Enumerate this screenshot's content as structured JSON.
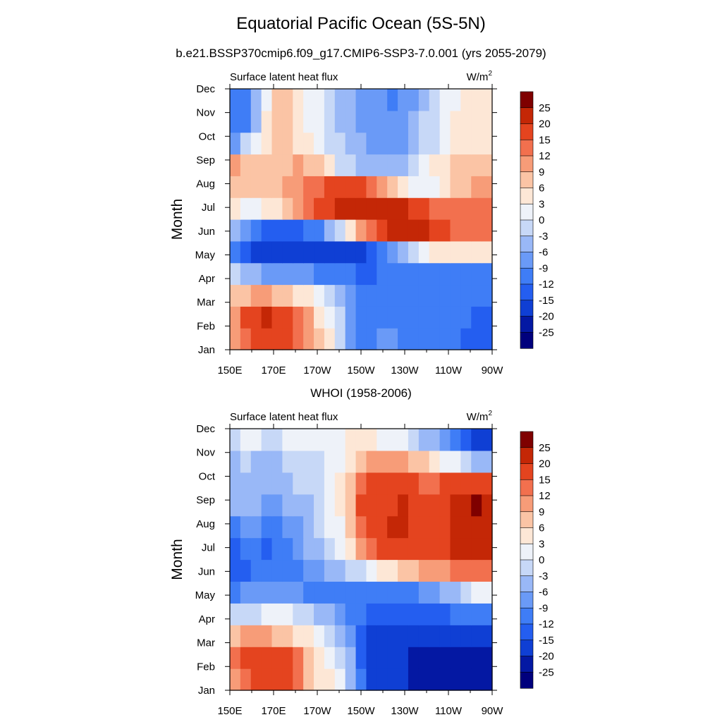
{
  "figure": {
    "title": "Equatorial Pacific Ocean (5S-5N)",
    "subtitle": "b.e21.BSSP370cmip6.f09_g17.CMIP6-SSP3-7.0.001 (yrs 2055-2079)",
    "panel2_title": "WHOI (1958-2006)"
  },
  "chart_data": [
    {
      "type": "heatmap",
      "title": "b.e21.BSSP370cmip6.f09_g17.CMIP6-SSP3-7.0.001 (yrs 2055-2079)",
      "left_label": "Surface latent heat flux",
      "units_base": "W/m",
      "units_exp": "2",
      "ylabel": "Month",
      "xlabel": "",
      "x_ticks": [
        "150E",
        "170E",
        "170W",
        "150W",
        "130W",
        "110W",
        "90W"
      ],
      "y_ticks": [
        "Jan",
        "Feb",
        "Mar",
        "Apr",
        "May",
        "Jun",
        "Jul",
        "Aug",
        "Sep",
        "Oct",
        "Nov",
        "Dec"
      ],
      "x": [
        "150E",
        "155E",
        "160E",
        "165E",
        "170E",
        "175E",
        "180",
        "175W",
        "170W",
        "165W",
        "160W",
        "155W",
        "150W",
        "145W",
        "140W",
        "135W",
        "130W",
        "125W",
        "120W",
        "115W",
        "110W",
        "105W",
        "100W",
        "95W",
        "90W"
      ],
      "values": [
        [
          10,
          14,
          17,
          19,
          18,
          17,
          14,
          10,
          6,
          3,
          -2,
          -8,
          -10,
          -10,
          -9,
          -9,
          -10,
          -11,
          -11,
          -11,
          -11,
          -12,
          -13,
          -14,
          -15
        ],
        [
          11,
          15,
          18,
          20,
          18,
          16,
          13,
          9,
          5,
          2,
          -3,
          -8,
          -10,
          -11,
          -10,
          -10,
          -10,
          -11,
          -11,
          -11,
          -11,
          -12,
          -12,
          -13,
          -14
        ],
        [
          6,
          8,
          9,
          9,
          8,
          7,
          5,
          3,
          1,
          -1,
          -4,
          -8,
          -10,
          -10,
          -10,
          -10,
          -11,
          -11,
          -12,
          -12,
          -12,
          -11,
          -11,
          -11,
          -12
        ],
        [
          -2,
          -4,
          -6,
          -7,
          -8,
          -8,
          -9,
          -9,
          -10,
          -11,
          -11,
          -12,
          -13,
          -13,
          -12,
          -12,
          -11,
          -11,
          -11,
          -10,
          -10,
          -10,
          -10,
          -10,
          -10
        ],
        [
          -12,
          -14,
          -16,
          -17,
          -17,
          -17,
          -18,
          -18,
          -18,
          -18,
          -18,
          -17,
          -16,
          -14,
          -12,
          -9,
          -5,
          -2,
          1,
          3,
          4,
          5,
          5,
          5,
          5
        ],
        [
          -6,
          -9,
          -12,
          -13,
          -13,
          -13,
          -13,
          -12,
          -10,
          -6,
          -1,
          4,
          9,
          14,
          19,
          22,
          24,
          24,
          21,
          18,
          15,
          13,
          12,
          13,
          14
        ],
        [
          3,
          2,
          2,
          3,
          4,
          6,
          9,
          13,
          16,
          19,
          21,
          22,
          23,
          24,
          24,
          23,
          21,
          18,
          15,
          13,
          12,
          12,
          12,
          12,
          12
        ],
        [
          8,
          7,
          6,
          7,
          8,
          9,
          11,
          13,
          14,
          15,
          16,
          16,
          15,
          12,
          9,
          6,
          3,
          1,
          1,
          2,
          4,
          6,
          8,
          9,
          10
        ],
        [
          9,
          8,
          7,
          6,
          7,
          8,
          9,
          8,
          6,
          3,
          -1,
          -3,
          -4,
          -5,
          -5,
          -5,
          -4,
          -2,
          1,
          3,
          5,
          6,
          7,
          8,
          8
        ],
        [
          -7,
          -3,
          1,
          4,
          6,
          6,
          5,
          3,
          1,
          -1,
          -3,
          -5,
          -6,
          -8,
          -9,
          -9,
          -8,
          -6,
          -3,
          -1,
          1,
          3,
          4,
          5,
          5
        ],
        [
          -12,
          -10,
          -4,
          3,
          6,
          6,
          4,
          2,
          0,
          -2,
          -4,
          -6,
          -7,
          -8,
          -9,
          -9,
          -8,
          -6,
          -3,
          -1,
          1,
          3,
          3,
          4,
          5
        ],
        [
          -11,
          -10,
          -5,
          2,
          6,
          6,
          4,
          2,
          0,
          -2,
          -4,
          -6,
          -8,
          -9,
          -9,
          -10,
          -9,
          -7,
          -4,
          -2,
          0,
          2,
          3,
          4,
          5
        ]
      ],
      "colorbar": {
        "labels": [
          "25",
          "20",
          "15",
          "12",
          "9",
          "6",
          "3",
          "0",
          "-3",
          "-6",
          "-9",
          "-12",
          "-15",
          "-20",
          "-25"
        ],
        "levels": [
          -25,
          -20,
          -15,
          -12,
          -9,
          -6,
          -3,
          0,
          3,
          6,
          9,
          12,
          15,
          20,
          25
        ],
        "colors": [
          "#00007d",
          "#0418a3",
          "#0f3fd4",
          "#245ef0",
          "#3f7df6",
          "#6a9af7",
          "#99b8f7",
          "#c7d8f7",
          "#eef2f9",
          "#fde7d6",
          "#fbc4a5",
          "#f79c78",
          "#f2704e",
          "#e4441f",
          "#c42706",
          "#7f0000"
        ]
      }
    },
    {
      "type": "heatmap",
      "title": "WHOI (1958-2006)",
      "left_label": "Surface latent heat flux",
      "units_base": "W/m",
      "units_exp": "2",
      "ylabel": "Month",
      "xlabel": "",
      "x_ticks": [
        "150E",
        "170E",
        "170W",
        "150W",
        "130W",
        "110W",
        "90W"
      ],
      "y_ticks": [
        "Jan",
        "Feb",
        "Mar",
        "Apr",
        "May",
        "Jun",
        "Jul",
        "Aug",
        "Sep",
        "Oct",
        "Nov",
        "Dec"
      ],
      "x": [
        "150E",
        "155E",
        "160E",
        "165E",
        "170E",
        "175E",
        "180",
        "175W",
        "170W",
        "165W",
        "160W",
        "155W",
        "150W",
        "145W",
        "140W",
        "135W",
        "130W",
        "125W",
        "120W",
        "115W",
        "110W",
        "105W",
        "100W",
        "95W",
        "90W"
      ],
      "values": [
        [
          11,
          14,
          16,
          16,
          15,
          15,
          12,
          8,
          5,
          3,
          0,
          -6,
          -12,
          -16,
          -18,
          -19,
          -20,
          -21,
          -21,
          -22,
          -22,
          -23,
          -24,
          -24,
          -24
        ],
        [
          13,
          16,
          17,
          17,
          16,
          15,
          12,
          8,
          5,
          2,
          -1,
          -6,
          -13,
          -17,
          -18,
          -19,
          -20,
          -21,
          -22,
          -22,
          -22,
          -22,
          -23,
          -23,
          -23
        ],
        [
          7,
          9,
          10,
          9,
          8,
          7,
          5,
          3,
          1,
          -1,
          -4,
          -8,
          -14,
          -16,
          -16,
          -16,
          -17,
          -17,
          -17,
          -17,
          -17,
          -16,
          -16,
          -16,
          -16
        ],
        [
          -3,
          -2,
          -1,
          0,
          1,
          0,
          -1,
          -2,
          -4,
          -6,
          -8,
          -10,
          -12,
          -14,
          -15,
          -15,
          -15,
          -15,
          -15,
          -14,
          -13,
          -12,
          -11,
          -10,
          -10
        ],
        [
          -10,
          -9,
          -8,
          -8,
          -8,
          -8,
          -9,
          -10,
          -10,
          -11,
          -11,
          -11,
          -11,
          -11,
          -11,
          -11,
          -11,
          -10,
          -9,
          -8,
          -6,
          -4,
          -2,
          0,
          2
        ],
        [
          -14,
          -13,
          -12,
          -12,
          -11,
          -11,
          -11,
          -9,
          -7,
          -6,
          -5,
          -3,
          -1,
          1,
          3,
          5,
          7,
          8,
          9,
          10,
          11,
          12,
          12,
          12,
          12
        ],
        [
          -13,
          -12,
          -12,
          -13,
          -12,
          -10,
          -8,
          -6,
          -4,
          -2,
          0,
          3,
          9,
          13,
          15,
          16,
          17,
          17,
          17,
          18,
          19,
          20,
          20,
          20,
          20
        ],
        [
          -10,
          -9,
          -9,
          -10,
          -10,
          -9,
          -7,
          -5,
          -3,
          0,
          2,
          6,
          13,
          16,
          18,
          20,
          20,
          19,
          18,
          18,
          19,
          20,
          21,
          21,
          21
        ],
        [
          -6,
          -5,
          -6,
          -7,
          -7,
          -6,
          -5,
          -4,
          -3,
          0,
          3,
          8,
          15,
          17,
          18,
          19,
          20,
          18,
          16,
          17,
          19,
          21,
          23,
          26,
          24
        ],
        [
          -4,
          -4,
          -6,
          -6,
          -5,
          -4,
          -3,
          -2,
          -2,
          0,
          3,
          8,
          14,
          16,
          16,
          17,
          18,
          16,
          14,
          14,
          15,
          16,
          17,
          18,
          17
        ],
        [
          -4,
          -3,
          -4,
          -5,
          -4,
          -3,
          -2,
          -2,
          -1,
          0,
          2,
          5,
          8,
          10,
          10,
          10,
          10,
          8,
          6,
          4,
          2,
          0,
          -2,
          -4,
          -6
        ],
        [
          -1,
          0,
          0,
          -1,
          -1,
          0,
          0,
          1,
          1,
          2,
          2,
          3,
          3,
          3,
          2,
          1,
          0,
          -2,
          -4,
          -6,
          -8,
          -10,
          -13,
          -16,
          -18
        ]
      ],
      "colorbar": {
        "labels": [
          "25",
          "20",
          "15",
          "12",
          "9",
          "6",
          "3",
          "0",
          "-3",
          "-6",
          "-9",
          "-12",
          "-15",
          "-20",
          "-25"
        ],
        "levels": [
          -25,
          -20,
          -15,
          -12,
          -9,
          -6,
          -3,
          0,
          3,
          6,
          9,
          12,
          15,
          20,
          25
        ],
        "colors": [
          "#00007d",
          "#0418a3",
          "#0f3fd4",
          "#245ef0",
          "#3f7df6",
          "#6a9af7",
          "#99b8f7",
          "#c7d8f7",
          "#eef2f9",
          "#fde7d6",
          "#fbc4a5",
          "#f79c78",
          "#f2704e",
          "#e4441f",
          "#c42706",
          "#7f0000"
        ]
      }
    }
  ]
}
